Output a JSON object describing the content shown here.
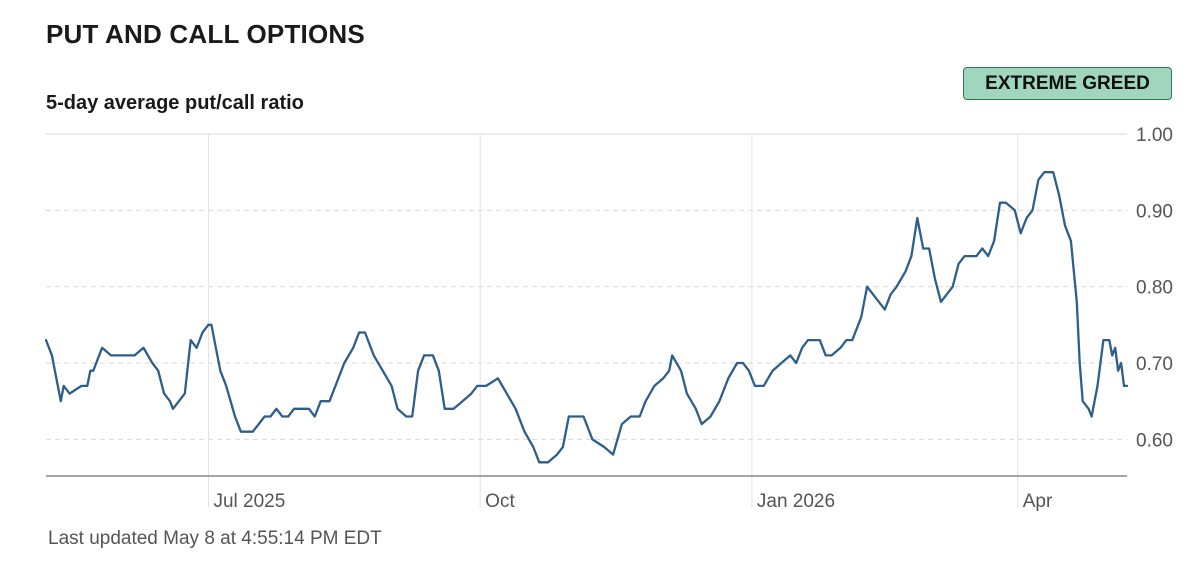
{
  "header": {
    "title": "PUT AND CALL OPTIONS",
    "subtitle": "5-day average put/call ratio",
    "badge": "EXTREME GREED"
  },
  "footer": {
    "updated": "Last updated May 8 at 4:55:14 PM EDT"
  },
  "colors": {
    "line": "#2e5f8a",
    "badge_bg": "#9fd6bd",
    "badge_border": "#2b7a57",
    "grid": "#d9d9d9"
  },
  "chart_data": {
    "type": "line",
    "title": "PUT AND CALL OPTIONS",
    "subtitle": "5-day average put/call ratio",
    "ylim": [
      0.552,
      1.0
    ],
    "yticks": [
      1.0,
      0.9,
      0.8,
      0.7,
      0.6
    ],
    "ytick_labels": [
      "1.00",
      "0.90",
      "0.80",
      "0.70",
      "0.60"
    ],
    "x_range": [
      "2025-05-07",
      "2026-05-08"
    ],
    "xticks": [
      {
        "date": "2025-07-01",
        "label": "Jul 2025"
      },
      {
        "date": "2025-10-01",
        "label": "Oct"
      },
      {
        "date": "2026-01-01",
        "label": "Jan 2026"
      },
      {
        "date": "2026-04-01",
        "label": "Apr"
      }
    ],
    "grid": true,
    "series": [
      {
        "values": [
          [
            "2025-05-07",
            0.73
          ],
          [
            "2025-05-09",
            0.71
          ],
          [
            "2025-05-12",
            0.65
          ],
          [
            "2025-05-13",
            0.67
          ],
          [
            "2025-05-15",
            0.66
          ],
          [
            "2025-05-19",
            0.67
          ],
          [
            "2025-05-21",
            0.67
          ],
          [
            "2025-05-22",
            0.69
          ],
          [
            "2025-05-23",
            0.69
          ],
          [
            "2025-05-26",
            0.72
          ],
          [
            "2025-05-29",
            0.71
          ],
          [
            "2025-06-01",
            0.71
          ],
          [
            "2025-06-03",
            0.71
          ],
          [
            "2025-06-06",
            0.71
          ],
          [
            "2025-06-09",
            0.72
          ],
          [
            "2025-06-12",
            0.7
          ],
          [
            "2025-06-14",
            0.69
          ],
          [
            "2025-06-16",
            0.66
          ],
          [
            "2025-06-18",
            0.65
          ],
          [
            "2025-06-19",
            0.64
          ],
          [
            "2025-06-23",
            0.66
          ],
          [
            "2025-06-25",
            0.73
          ],
          [
            "2025-06-27",
            0.72
          ],
          [
            "2025-06-29",
            0.74
          ],
          [
            "2025-07-01",
            0.75
          ],
          [
            "2025-07-02",
            0.75
          ],
          [
            "2025-07-05",
            0.69
          ],
          [
            "2025-07-07",
            0.67
          ],
          [
            "2025-07-10",
            0.63
          ],
          [
            "2025-07-12",
            0.61
          ],
          [
            "2025-07-14",
            0.61
          ],
          [
            "2025-07-16",
            0.61
          ],
          [
            "2025-07-18",
            0.62
          ],
          [
            "2025-07-20",
            0.63
          ],
          [
            "2025-07-22",
            0.63
          ],
          [
            "2025-07-24",
            0.64
          ],
          [
            "2025-07-26",
            0.63
          ],
          [
            "2025-07-28",
            0.63
          ],
          [
            "2025-07-30",
            0.64
          ],
          [
            "2025-08-01",
            0.64
          ],
          [
            "2025-08-04",
            0.64
          ],
          [
            "2025-08-06",
            0.63
          ],
          [
            "2025-08-08",
            0.65
          ],
          [
            "2025-08-11",
            0.65
          ],
          [
            "2025-08-14",
            0.68
          ],
          [
            "2025-08-16",
            0.7
          ],
          [
            "2025-08-19",
            0.72
          ],
          [
            "2025-08-21",
            0.74
          ],
          [
            "2025-08-23",
            0.74
          ],
          [
            "2025-08-26",
            0.71
          ],
          [
            "2025-08-29",
            0.69
          ],
          [
            "2025-09-01",
            0.67
          ],
          [
            "2025-09-03",
            0.64
          ],
          [
            "2025-09-06",
            0.63
          ],
          [
            "2025-09-08",
            0.63
          ],
          [
            "2025-09-10",
            0.69
          ],
          [
            "2025-09-12",
            0.71
          ],
          [
            "2025-09-15",
            0.71
          ],
          [
            "2025-09-17",
            0.69
          ],
          [
            "2025-09-19",
            0.64
          ],
          [
            "2025-09-22",
            0.64
          ],
          [
            "2025-09-25",
            0.65
          ],
          [
            "2025-09-28",
            0.66
          ],
          [
            "2025-09-30",
            0.67
          ],
          [
            "2025-10-03",
            0.67
          ],
          [
            "2025-10-07",
            0.68
          ],
          [
            "2025-10-10",
            0.66
          ],
          [
            "2025-10-13",
            0.64
          ],
          [
            "2025-10-16",
            0.61
          ],
          [
            "2025-10-19",
            0.59
          ],
          [
            "2025-10-21",
            0.57
          ],
          [
            "2025-10-24",
            0.57
          ],
          [
            "2025-10-27",
            0.58
          ],
          [
            "2025-10-29",
            0.59
          ],
          [
            "2025-10-31",
            0.63
          ],
          [
            "2025-11-03",
            0.63
          ],
          [
            "2025-11-05",
            0.63
          ],
          [
            "2025-11-08",
            0.6
          ],
          [
            "2025-11-12",
            0.59
          ],
          [
            "2025-11-15",
            0.58
          ],
          [
            "2025-11-18",
            0.62
          ],
          [
            "2025-11-21",
            0.63
          ],
          [
            "2025-11-24",
            0.63
          ],
          [
            "2025-11-26",
            0.65
          ],
          [
            "2025-11-29",
            0.67
          ],
          [
            "2025-12-02",
            0.68
          ],
          [
            "2025-12-04",
            0.69
          ],
          [
            "2025-12-05",
            0.71
          ],
          [
            "2025-12-08",
            0.69
          ],
          [
            "2025-12-10",
            0.66
          ],
          [
            "2025-12-13",
            0.64
          ],
          [
            "2025-12-15",
            0.62
          ],
          [
            "2025-12-18",
            0.63
          ],
          [
            "2025-12-21",
            0.65
          ],
          [
            "2025-12-24",
            0.68
          ],
          [
            "2025-12-27",
            0.7
          ],
          [
            "2025-12-29",
            0.7
          ],
          [
            "2025-12-31",
            0.69
          ],
          [
            "2026-01-02",
            0.67
          ],
          [
            "2026-01-05",
            0.67
          ],
          [
            "2026-01-08",
            0.69
          ],
          [
            "2026-01-11",
            0.7
          ],
          [
            "2026-01-14",
            0.71
          ],
          [
            "2026-01-16",
            0.7
          ],
          [
            "2026-01-18",
            0.72
          ],
          [
            "2026-01-20",
            0.73
          ],
          [
            "2026-01-22",
            0.73
          ],
          [
            "2026-01-24",
            0.73
          ],
          [
            "2026-01-26",
            0.71
          ],
          [
            "2026-01-28",
            0.71
          ],
          [
            "2026-01-31",
            0.72
          ],
          [
            "2026-02-02",
            0.73
          ],
          [
            "2026-02-04",
            0.73
          ],
          [
            "2026-02-07",
            0.76
          ],
          [
            "2026-02-09",
            0.8
          ],
          [
            "2026-02-11",
            0.79
          ],
          [
            "2026-02-13",
            0.78
          ],
          [
            "2026-02-15",
            0.77
          ],
          [
            "2026-02-17",
            0.79
          ],
          [
            "2026-02-19",
            0.8
          ],
          [
            "2026-02-22",
            0.82
          ],
          [
            "2026-02-24",
            0.84
          ],
          [
            "2026-02-26",
            0.89
          ],
          [
            "2026-02-28",
            0.85
          ],
          [
            "2026-03-02",
            0.85
          ],
          [
            "2026-03-04",
            0.81
          ],
          [
            "2026-03-06",
            0.78
          ],
          [
            "2026-03-08",
            0.79
          ],
          [
            "2026-03-10",
            0.8
          ],
          [
            "2026-03-12",
            0.83
          ],
          [
            "2026-03-14",
            0.84
          ],
          [
            "2026-03-16",
            0.84
          ],
          [
            "2026-03-18",
            0.84
          ],
          [
            "2026-03-20",
            0.85
          ],
          [
            "2026-03-22",
            0.84
          ],
          [
            "2026-03-24",
            0.86
          ],
          [
            "2026-03-26",
            0.91
          ],
          [
            "2026-03-28",
            0.91
          ],
          [
            "2026-03-31",
            0.9
          ],
          [
            "2026-04-02",
            0.87
          ],
          [
            "2026-04-04",
            0.89
          ],
          [
            "2026-04-06",
            0.9
          ],
          [
            "2026-04-08",
            0.94
          ],
          [
            "2026-04-10",
            0.95
          ],
          [
            "2026-04-13",
            0.95
          ],
          [
            "2026-04-15",
            0.92
          ],
          [
            "2026-04-17",
            0.88
          ],
          [
            "2026-04-19",
            0.86
          ],
          [
            "2026-04-21",
            0.78
          ],
          [
            "2026-04-22",
            0.7
          ],
          [
            "2026-04-23",
            0.65
          ],
          [
            "2026-04-25",
            0.64
          ],
          [
            "2026-04-26",
            0.63
          ],
          [
            "2026-04-28",
            0.67
          ],
          [
            "2026-04-30",
            0.73
          ],
          [
            "2026-05-02",
            0.73
          ],
          [
            "2026-05-03",
            0.71
          ],
          [
            "2026-05-04",
            0.72
          ],
          [
            "2026-05-05",
            0.69
          ],
          [
            "2026-05-06",
            0.7
          ],
          [
            "2026-05-07",
            0.67
          ],
          [
            "2026-05-08",
            0.67
          ]
        ]
      }
    ]
  }
}
